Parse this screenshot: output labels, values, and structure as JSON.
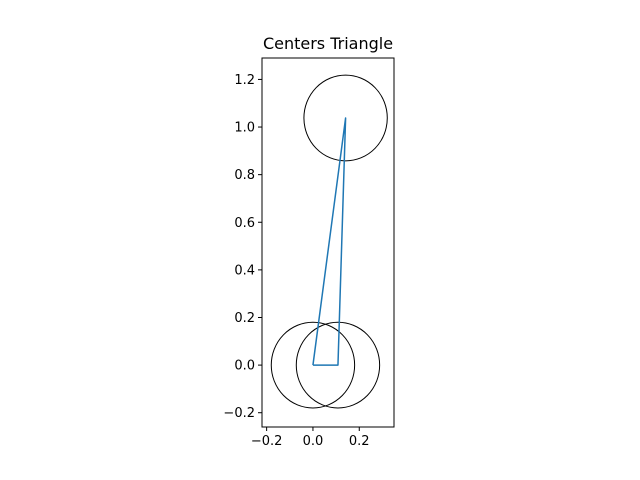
{
  "chart_data": {
    "type": "line",
    "title": "Centers Triangle",
    "xlabel": "",
    "ylabel": "",
    "xlim": [
      -0.22,
      0.35
    ],
    "ylim": [
      -0.26,
      1.29
    ],
    "xticks": [
      -0.2,
      0.0,
      0.2
    ],
    "xtick_labels": [
      "−0.2",
      "0.0",
      "0.2"
    ],
    "yticks": [
      -0.2,
      0.0,
      0.2,
      0.4,
      0.6,
      0.8,
      1.0,
      1.2
    ],
    "ytick_labels": [
      "−0.2",
      "0.0",
      "0.2",
      "0.4",
      "0.6",
      "0.8",
      "1.0",
      "1.2"
    ],
    "grid": false,
    "series": [
      {
        "color": "#1f77b4",
        "points": [
          [
            0.0,
            0.0
          ],
          [
            0.108,
            0.0
          ],
          [
            0.141,
            1.038
          ],
          [
            0.0,
            0.0
          ]
        ]
      }
    ],
    "circles": [
      {
        "cx": 0.0,
        "cy": 0.0,
        "r": 0.18,
        "color": "#000000"
      },
      {
        "cx": 0.108,
        "cy": 0.0,
        "r": 0.18,
        "color": "#000000"
      },
      {
        "cx": 0.141,
        "cy": 1.038,
        "r": 0.18,
        "color": "#000000"
      }
    ]
  }
}
